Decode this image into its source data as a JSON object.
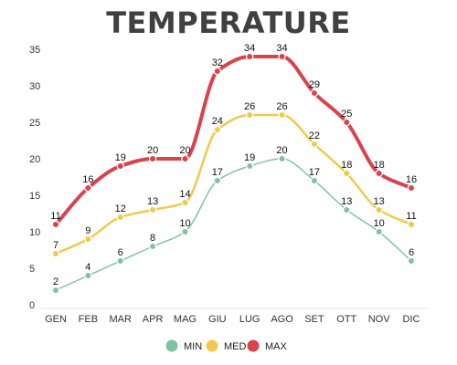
{
  "chart_data": {
    "type": "line",
    "title": "TEMPERATURE",
    "categories": [
      "GEN",
      "FEB",
      "MAR",
      "APR",
      "MAG",
      "GIU",
      "LUG",
      "AGO",
      "SET",
      "OTT",
      "NOV",
      "DIC"
    ],
    "ylim": [
      0,
      35
    ],
    "yticks": [
      0,
      5,
      10,
      15,
      20,
      25,
      30,
      35
    ],
    "grid": false,
    "legend_position": "bottom",
    "series": [
      {
        "name": "MIN",
        "color": "#7fc4a0",
        "values": [
          2,
          4,
          6,
          8,
          10,
          17,
          19,
          20,
          17,
          13,
          10,
          6
        ]
      },
      {
        "name": "MED",
        "color": "#f2c94c",
        "values": [
          7,
          9,
          12,
          13,
          14,
          24,
          26,
          26,
          22,
          18,
          13,
          11
        ]
      },
      {
        "name": "MAX",
        "color": "#d9434b",
        "values": [
          11,
          16,
          19,
          20,
          20,
          32,
          34,
          34,
          29,
          25,
          18,
          16
        ]
      }
    ]
  }
}
